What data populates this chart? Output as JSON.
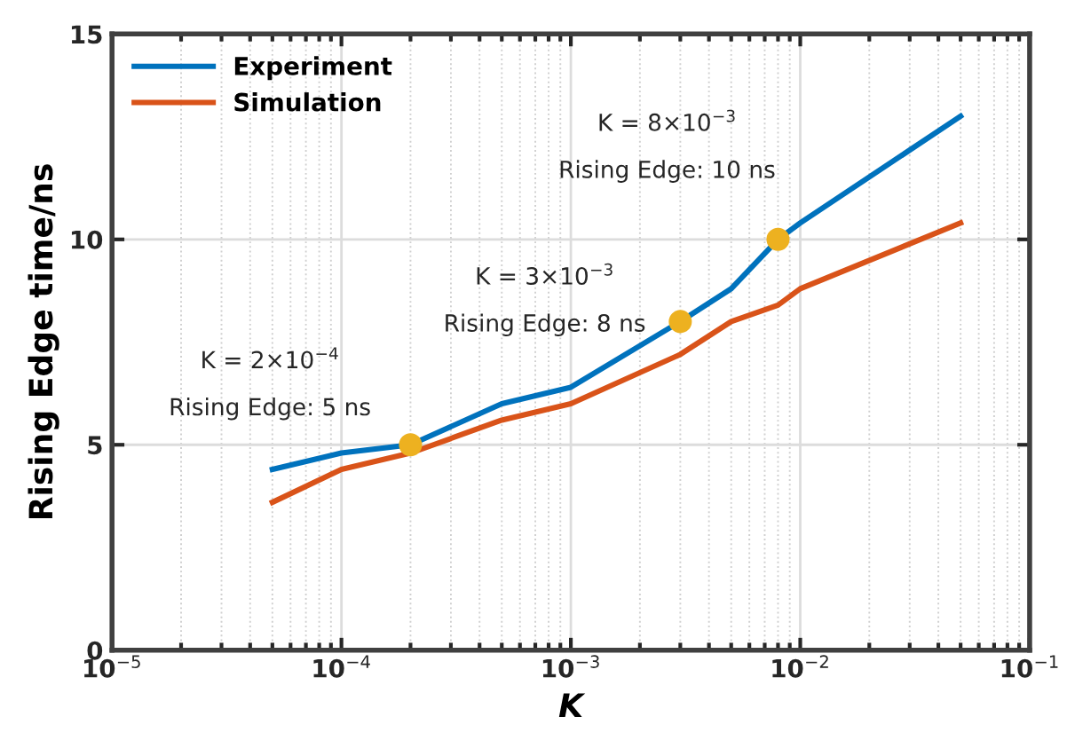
{
  "chart_data": {
    "type": "line",
    "xlabel": "K",
    "ylabel": "Rising Edge time/ns",
    "log": "x",
    "xlim": [
      1e-05,
      0.1
    ],
    "ylim": [
      0,
      15
    ],
    "xticks": [
      {
        "value": 1e-05,
        "label": "10$^{−5}$"
      },
      {
        "value": 0.0001,
        "label": "10$^{−4}$"
      },
      {
        "value": 0.001,
        "label": "10$^{−3}$"
      },
      {
        "value": 0.01,
        "label": "10$^{−2}$"
      },
      {
        "value": 0.1,
        "label": "10$^{−1}$"
      }
    ],
    "yticks": [
      0,
      5,
      10,
      15
    ],
    "grid": true,
    "legend": "top left",
    "marker": "none",
    "line_style": "solid",
    "x": [
      5e-05,
      0.0001,
      0.0002,
      0.0005,
      0.001,
      0.003,
      0.005,
      0.008,
      0.01,
      0.05
    ],
    "series": [
      {
        "name": "Experiment",
        "color": "#0072bd",
        "values": [
          4.4,
          4.8,
          5.0,
          6.0,
          6.4,
          8.0,
          8.8,
          10.0,
          10.4,
          13.0
        ]
      },
      {
        "name": "Simulation",
        "color": "#d95319",
        "values": [
          3.6,
          4.4,
          4.8,
          5.6,
          6.0,
          7.2,
          8.0,
          8.4,
          8.8,
          10.4
        ]
      },
      {
        "type": "scatter",
        "marker": "circle",
        "color": "#edb120",
        "x": [
          0.0002,
          0.003,
          0.008
        ],
        "values": [
          5.0,
          8.0,
          10.0
        ]
      }
    ],
    "annotations": [
      "K = 2×10$^{−4}$",
      {
        "text": "Rising Edge: 5 ns",
        "x": 0.0002,
        "y": 5.0
      },
      "K = 3×10$^{−3}$",
      {
        "text": "Rising Edge: 8 ns",
        "x": 0.003,
        "y": 8.0
      },
      "K = 8×10$^{−3}$",
      {
        "text": "Rising Edge: 10 ns",
        "x": 0.008,
        "y": 10.0
      }
    ]
  }
}
